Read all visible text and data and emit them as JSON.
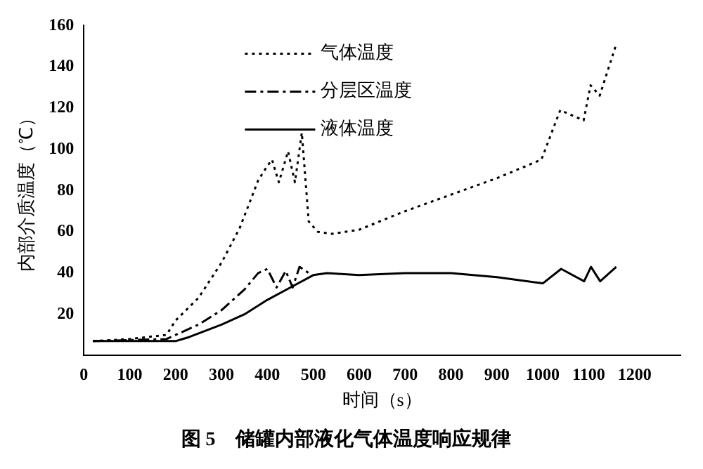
{
  "chart_data": {
    "type": "line",
    "title": "图 5　储罐内部液化气体温度响应规律",
    "xlabel": "时间（s）",
    "ylabel": "内部介质温度（℃）",
    "xlim": [
      0,
      1300
    ],
    "xticks": [
      0,
      100,
      200,
      300,
      400,
      500,
      600,
      700,
      800,
      900,
      1000,
      1100,
      1200
    ],
    "ylim": [
      0,
      160
    ],
    "yticks": [
      20,
      40,
      60,
      80,
      100,
      120,
      140,
      160
    ],
    "grid": false,
    "legend": "top",
    "marker": "none",
    "series": [
      {
        "name": "气体温度",
        "color": "#000000",
        "line_style": "dotted",
        "x": [
          20,
          100,
          180,
          200,
          250,
          300,
          340,
          380,
          400,
          410,
          425,
          445,
          460,
          475,
          490,
          510,
          540,
          600,
          700,
          800,
          900,
          997,
          1038,
          1089,
          1104,
          1124,
          1160
        ],
        "values": [
          7,
          8,
          10,
          17,
          28,
          45,
          62,
          85,
          92,
          95,
          84,
          99,
          84,
          108,
          65,
          60,
          59,
          61,
          70,
          78,
          86,
          95,
          119,
          114,
          131,
          126,
          151
        ]
      },
      {
        "name": "分层区温度",
        "color": "#000000",
        "line_style": "dashed",
        "x": [
          20,
          180,
          250,
          300,
          350,
          380,
          400,
          420,
          440,
          455,
          470,
          490
        ],
        "values": [
          7,
          8,
          15,
          22,
          32,
          40,
          42,
          33,
          41,
          33,
          43,
          40
        ]
      },
      {
        "name": "液体温度",
        "color": "#000000",
        "line_style": "solid",
        "x": [
          20,
          200,
          230,
          300,
          350,
          400,
          450,
          500,
          530,
          600,
          700,
          800,
          900,
          1000,
          1040,
          1090,
          1105,
          1125,
          1160
        ],
        "values": [
          7,
          7,
          9,
          15,
          20,
          27,
          33,
          39,
          40,
          39,
          40,
          40,
          38,
          35,
          42,
          36,
          43,
          36,
          43
        ]
      }
    ]
  }
}
